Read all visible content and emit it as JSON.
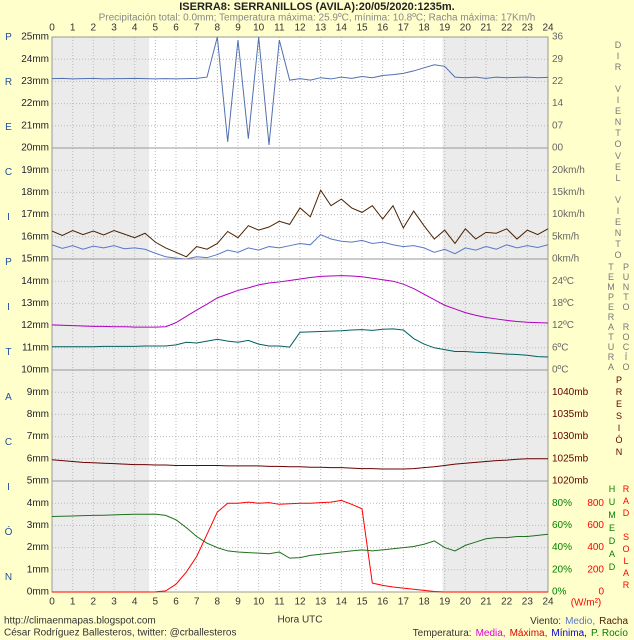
{
  "title": "ISERRA8: SERRANILLOS (AVILA):20/05/2020:1235m.",
  "subtitle": "Precipitación total: 0.0mm; Temperatura máxima: 25.9ºC, mínima: 10.8ºC; Racha máxima: 17Km/h",
  "x_label": "Hora UTC",
  "credits": [
    "http://climaenmapas.blogspot.com",
    "César Rodríguez Ballesteros, twitter: @crballesteros"
  ],
  "legend": [
    {
      "label": "Viento:",
      "items": [
        {
          "text": "Medio,",
          "color": "#5a78c8"
        },
        {
          "text": "Racha",
          "color": "#4a2200"
        }
      ]
    },
    {
      "label": "Temperatura:",
      "items": [
        {
          "text": "Media,",
          "color": "#e000e0"
        },
        {
          "text": "Máxima,",
          "color": "#e00000"
        },
        {
          "text": "Mínima,",
          "color": "#0000cc"
        },
        {
          "text": "P. Rocío",
          "color": "#008000"
        }
      ]
    }
  ],
  "chart_data": [
    {
      "type": "line",
      "title": "PRECIPITACIÓN",
      "xlim": [
        0,
        24
      ],
      "xticks": [
        0,
        1,
        2,
        3,
        4,
        5,
        6,
        7,
        8,
        9,
        10,
        11,
        12,
        13,
        14,
        15,
        16,
        17,
        18,
        19,
        20,
        21,
        22,
        23,
        24
      ],
      "ylim": [
        0,
        25
      ],
      "yticks": [
        {
          "value": 0,
          "label": "0mm"
        },
        {
          "value": 1,
          "label": "1mm"
        },
        {
          "value": 2,
          "label": "2mm"
        },
        {
          "value": 3,
          "label": "3mm"
        },
        {
          "value": 4,
          "label": "4mm"
        },
        {
          "value": 5,
          "label": "5mm"
        },
        {
          "value": 6,
          "label": "6mm"
        },
        {
          "value": 7,
          "label": "7mm"
        },
        {
          "value": 8,
          "label": "8mm"
        },
        {
          "value": 9,
          "label": "9mm"
        },
        {
          "value": 10,
          "label": "10mm"
        },
        {
          "value": 11,
          "label": "11mm"
        },
        {
          "value": 12,
          "label": "12mm"
        },
        {
          "value": 13,
          "label": "13mm"
        },
        {
          "value": 14,
          "label": "14mm"
        },
        {
          "value": 15,
          "label": "15mm"
        },
        {
          "value": 16,
          "label": "16mm"
        },
        {
          "value": 17,
          "label": "17mm"
        },
        {
          "value": 18,
          "label": "18mm"
        },
        {
          "value": 19,
          "label": "19mm"
        },
        {
          "value": 20,
          "label": "20mm"
        },
        {
          "value": 21,
          "label": "21mm"
        },
        {
          "value": 22,
          "label": "22mm"
        },
        {
          "value": 23,
          "label": "23mm"
        },
        {
          "value": 24,
          "label": "24mm"
        },
        {
          "value": 25,
          "label": "25mm"
        }
      ],
      "grid": true,
      "night": [
        [
          0,
          4.7
        ],
        [
          18.9,
          24
        ]
      ]
    },
    {
      "type": "line",
      "axis_label": "DIR VIENTO",
      "tick_color": "#666666",
      "xlim": [
        0,
        24
      ],
      "x": [
        0,
        0.5,
        1,
        1.5,
        2,
        2.5,
        3,
        3.5,
        4,
        4.5,
        5,
        5.5,
        6,
        6.5,
        7,
        7.5,
        8,
        8.5,
        9,
        9.5,
        10,
        10.5,
        11,
        11.5,
        12,
        12.5,
        13,
        13.5,
        14,
        14.5,
        15,
        15.5,
        16,
        16.5,
        17,
        17.5,
        18,
        18.5,
        19,
        19.5,
        20,
        20.5,
        21,
        21.5,
        22,
        22.5,
        23,
        23.5,
        24
      ],
      "ylim": [
        0,
        36
      ],
      "yticks": [
        {
          "value": 0,
          "label": "00"
        },
        {
          "value": 7.2,
          "label": "07"
        },
        {
          "value": 14.4,
          "label": "14"
        },
        {
          "value": 21.6,
          "label": "22"
        },
        {
          "value": 28.8,
          "label": "29"
        },
        {
          "value": 36,
          "label": "36"
        }
      ],
      "series": [
        {
          "color": "#5070b0",
          "values": [
            22.5,
            22.6,
            22.4,
            22.5,
            22.6,
            22.4,
            22.5,
            22.5,
            22.6,
            22.5,
            22.4,
            22.5,
            22.4,
            22.5,
            22.6,
            23,
            36,
            2,
            35,
            3,
            36,
            1,
            35,
            22,
            22.5,
            22,
            22.8,
            22.4,
            23,
            22.6,
            23.2,
            22.8,
            23.5,
            23.8,
            24.2,
            25,
            26,
            27,
            26.5,
            23,
            22.8,
            23,
            22.6,
            23,
            22.8,
            22.9,
            23,
            22.8,
            22.9
          ]
        }
      ]
    },
    {
      "type": "line",
      "axis_label": "VEL VIENTO",
      "tick_color": "#666666",
      "xlim": [
        0,
        24
      ],
      "x": [
        0,
        0.5,
        1,
        1.5,
        2,
        2.5,
        3,
        3.5,
        4,
        4.5,
        5,
        5.5,
        6,
        6.5,
        7,
        7.5,
        8,
        8.5,
        9,
        9.5,
        10,
        10.5,
        11,
        11.5,
        12,
        12.5,
        13,
        13.5,
        14,
        14.5,
        15,
        15.5,
        16,
        16.5,
        17,
        17.5,
        18,
        18.5,
        19,
        19.5,
        20,
        20.5,
        21,
        21.5,
        22,
        22.5,
        23,
        23.5,
        24
      ],
      "ylim": [
        0,
        25
      ],
      "yticks": [
        {
          "value": 0,
          "label": "0km/h"
        },
        {
          "value": 5,
          "label": "5km/h"
        },
        {
          "value": 10,
          "label": "10km/h"
        },
        {
          "value": 15,
          "label": "15km/h"
        },
        {
          "value": 20,
          "label": "20km/h"
        }
      ],
      "series": [
        {
          "color": "#4a2200",
          "values": [
            6.3,
            5.3,
            6.4,
            5.5,
            6.3,
            5.4,
            6.4,
            5.6,
            4.8,
            5.8,
            3.8,
            2.5,
            1.5,
            0.5,
            2.8,
            2.2,
            3.5,
            6.2,
            4.8,
            7.5,
            6.5,
            7.2,
            8.5,
            7.8,
            11.5,
            9.5,
            15.5,
            12,
            13.5,
            11.5,
            10.5,
            12,
            9,
            12,
            7,
            10.8,
            7.5,
            4.5,
            6.5,
            3.5,
            6.8,
            4.5,
            6,
            5.8,
            6.8,
            4.5,
            6.5,
            5.5,
            6.8
          ]
        },
        {
          "color": "#5a78c8",
          "values": [
            3.2,
            2.4,
            3,
            2.2,
            2.9,
            2.5,
            3,
            2.3,
            2.5,
            2.2,
            1.3,
            0.5,
            0.2,
            0,
            0.5,
            0.3,
            1,
            2,
            1.5,
            2.5,
            2,
            2.8,
            2.5,
            3,
            3.5,
            3.2,
            5.5,
            4.5,
            4,
            3.8,
            4.2,
            3.5,
            3.8,
            3.2,
            2.8,
            3,
            2.5,
            1.5,
            2.2,
            1.2,
            2.5,
            2,
            2.8,
            2.2,
            3.2,
            2.5,
            3,
            2.6,
            3.2
          ]
        }
      ]
    },
    {
      "type": "line",
      "axis_label": "TEMPERATURA",
      "axis_label2": "PUNTO ROCÍO",
      "tick_color": "#666666",
      "xlim": [
        0,
        24
      ],
      "x": [
        0,
        0.5,
        1,
        1.5,
        2,
        2.5,
        3,
        3.5,
        4,
        4.5,
        5,
        5.5,
        6,
        6.5,
        7,
        7.5,
        8,
        8.5,
        9,
        9.5,
        10,
        10.5,
        11,
        11.5,
        12,
        12.5,
        13,
        13.5,
        14,
        14.5,
        15,
        15.5,
        16,
        16.5,
        17,
        17.5,
        18,
        18.5,
        19,
        19.5,
        20,
        20.5,
        21,
        21.5,
        22,
        22.5,
        23,
        23.5,
        24
      ],
      "ylim": [
        0,
        30
      ],
      "yticks": [
        {
          "value": 0,
          "label": "0ºC"
        },
        {
          "value": 6,
          "label": "6ºC"
        },
        {
          "value": 12,
          "label": "12ºC"
        },
        {
          "value": 18,
          "label": "18ºC"
        },
        {
          "value": 24,
          "label": "24ºC"
        }
      ],
      "series": [
        {
          "color": "#b000c0",
          "values": [
            12.2,
            12.1,
            12,
            11.9,
            11.8,
            11.8,
            11.7,
            11.7,
            11.6,
            11.6,
            11.6,
            11.7,
            12.8,
            14.5,
            16.2,
            17.8,
            19.5,
            20.5,
            21.5,
            22.2,
            23,
            23.5,
            23.8,
            24.2,
            24.6,
            25,
            25.3,
            25.4,
            25.5,
            25.4,
            25.2,
            24.8,
            24.4,
            24,
            23.2,
            22,
            20.5,
            19,
            17.5,
            16.5,
            15.5,
            14.8,
            14.2,
            13.8,
            13.4,
            13.1,
            12.9,
            12.8,
            12.7
          ]
        },
        {
          "color": "#006060",
          "values": [
            6.3,
            6.3,
            6.3,
            6.3,
            6.3,
            6.4,
            6.4,
            6.4,
            6.4,
            6.5,
            6.5,
            6.5,
            6.8,
            7.5,
            7.3,
            7.8,
            8.3,
            7.8,
            7.5,
            8,
            7,
            6.5,
            6.5,
            6.2,
            10.2,
            10.3,
            10.4,
            10.5,
            10.6,
            10.8,
            10.9,
            10.7,
            11,
            11.1,
            10.8,
            8.5,
            7,
            6,
            5.5,
            5,
            5,
            4.8,
            4.7,
            4.5,
            4.3,
            4.2,
            4,
            3.6,
            3.5
          ]
        }
      ]
    },
    {
      "type": "line",
      "axis_label": "PRESIÓN",
      "tick_color": "#600000",
      "xlim": [
        0,
        24
      ],
      "x": [
        0,
        0.5,
        1,
        1.5,
        2,
        2.5,
        3,
        3.5,
        4,
        4.5,
        5,
        5.5,
        6,
        6.5,
        7,
        7.5,
        8,
        8.5,
        9,
        9.5,
        10,
        10.5,
        11,
        11.5,
        12,
        12.5,
        13,
        13.5,
        14,
        14.5,
        15,
        15.5,
        16,
        16.5,
        17,
        17.5,
        18,
        18.5,
        19,
        19.5,
        20,
        20.5,
        21,
        21.5,
        22,
        22.5,
        23,
        23.5,
        24
      ],
      "ylim": [
        1020,
        1045
      ],
      "yticks": [
        {
          "value": 1020,
          "label": "1020mb"
        },
        {
          "value": 1025,
          "label": "1025mb"
        },
        {
          "value": 1030,
          "label": "1030mb"
        },
        {
          "value": 1035,
          "label": "1035mb"
        },
        {
          "value": 1040,
          "label": "1040mb"
        }
      ],
      "series": [
        {
          "color": "#6a0000",
          "values": [
            1024.8,
            1024.6,
            1024.4,
            1024.2,
            1024.1,
            1024,
            1023.9,
            1023.8,
            1023.7,
            1023.7,
            1023.6,
            1023.6,
            1023.5,
            1023.5,
            1023.5,
            1023.5,
            1023.5,
            1023.4,
            1023.4,
            1023.4,
            1023.4,
            1023.3,
            1023.3,
            1023.2,
            1023.2,
            1023.1,
            1023.1,
            1023,
            1023,
            1022.9,
            1022.8,
            1022.8,
            1022.7,
            1022.7,
            1022.7,
            1022.8,
            1023,
            1023.2,
            1023.5,
            1023.8,
            1024,
            1024.2,
            1024.4,
            1024.6,
            1024.7,
            1024.9,
            1025,
            1025,
            1025
          ]
        }
      ]
    },
    {
      "type": "line",
      "axis_label": "HUMEDAD",
      "y2_label": "RAD SOLAR",
      "y2_unit": "(W/m²)",
      "tick_color": "#008000",
      "y2_color": "#ff0000",
      "xlim": [
        0,
        24
      ],
      "x": [
        0,
        0.5,
        1,
        1.5,
        2,
        2.5,
        3,
        3.5,
        4,
        4.5,
        5,
        5.5,
        6,
        6.5,
        7,
        7.5,
        8,
        8.5,
        9,
        9.5,
        10,
        10.5,
        11,
        11.5,
        12,
        12.5,
        13,
        13.5,
        14,
        14.5,
        15,
        15.5,
        16,
        16.5,
        17,
        17.5,
        18,
        18.5,
        19,
        19.5,
        20,
        20.5,
        21,
        21.5,
        22,
        22.5,
        23,
        23.5,
        24
      ],
      "ylim": [
        0,
        100
      ],
      "yticks": [
        {
          "value": 0,
          "label": "0%"
        },
        {
          "value": 20,
          "label": "20%"
        },
        {
          "value": 40,
          "label": "40%"
        },
        {
          "value": 60,
          "label": "60%"
        },
        {
          "value": 80,
          "label": "80%"
        }
      ],
      "y2lim": [
        0,
        1000
      ],
      "y2ticks": [
        0,
        200,
        400,
        600,
        800
      ],
      "series": [
        {
          "color": "#207020",
          "values": [
            68,
            68.2,
            68.5,
            68.8,
            69,
            69.2,
            69.5,
            69.8,
            70,
            70,
            70.2,
            69,
            65,
            58,
            50,
            44,
            40,
            37,
            36,
            35.5,
            35,
            34.5,
            36,
            30.5,
            31,
            33,
            34,
            35,
            36,
            37,
            38,
            37,
            38,
            39,
            40,
            41,
            43,
            46,
            40,
            37,
            42,
            45,
            48,
            49,
            49,
            50,
            50,
            51,
            52
          ]
        },
        {
          "color": "#ff0000",
          "axis": "y2",
          "values": [
            0,
            0,
            0,
            0,
            0,
            0,
            0,
            0,
            0,
            0,
            1,
            10,
            70,
            180,
            320,
            520,
            720,
            800,
            800,
            810,
            800,
            805,
            790,
            795,
            800,
            800,
            805,
            810,
            825,
            790,
            750,
            80,
            60,
            45,
            35,
            25,
            15,
            5,
            0,
            0,
            0,
            0,
            0,
            0,
            0,
            0,
            0,
            0,
            0
          ]
        }
      ]
    }
  ]
}
